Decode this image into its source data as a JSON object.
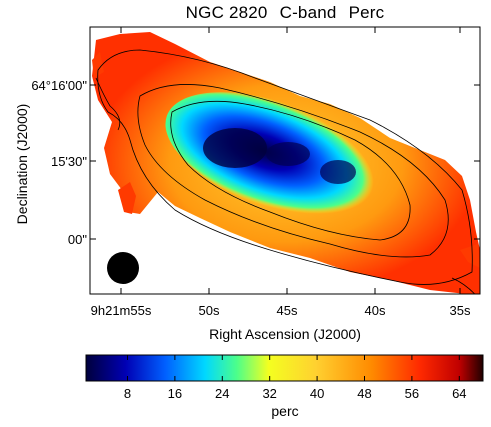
{
  "title": {
    "object": "NGC 2820",
    "band": "C-band",
    "quantity": "Perc"
  },
  "xlabel": "Right Ascension (J2000)",
  "ylabel": "Declination (J2000)",
  "x_ticks": [
    "9h21m55s",
    "50s",
    "45s",
    "40s",
    "35s"
  ],
  "y_ticks": [
    "64°16'00\"",
    "15'30\"",
    "00\""
  ],
  "colorbar": {
    "label": "perc",
    "ticks": [
      "8",
      "16",
      "24",
      "32",
      "40",
      "48",
      "56",
      "64"
    ],
    "range": [
      1,
      68
    ],
    "colormap": [
      "#00003c",
      "#0000b4",
      "#0060ff",
      "#00d8ff",
      "#4cff8a",
      "#f4ff20",
      "#ffd030",
      "#ff8a00",
      "#ff2a00",
      "#c00000",
      "#200000"
    ]
  },
  "beam": {
    "color": "#000000"
  },
  "contours": {
    "color": "#000000",
    "count": 3
  }
}
